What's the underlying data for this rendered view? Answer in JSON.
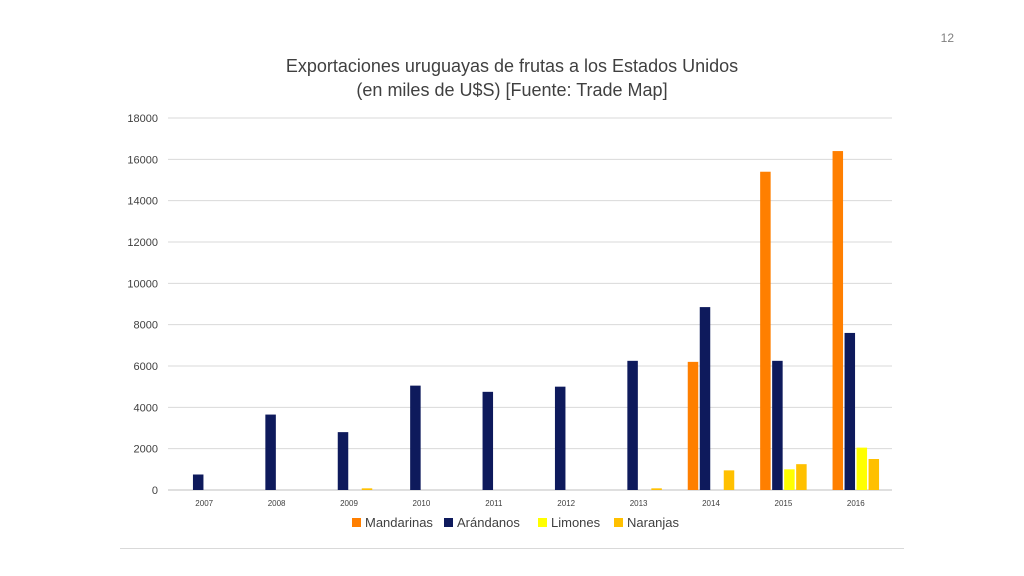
{
  "slide": {
    "page_number": "12"
  },
  "colors": {
    "Mandarinas": "#ff7f00",
    "Arándanos": "#0e1a5c",
    "Limones": "#ffff00",
    "Naranjas": "#ffc000",
    "grid": "#d9d9d9",
    "text": "#404040"
  },
  "chart_data": {
    "type": "bar",
    "title": "Exportaciones uruguayas de frutas a los Estados Unidos",
    "subtitle": "(en miles de U$S) [Fuente: Trade Map]",
    "categories": [
      "2007",
      "2008",
      "2009",
      "2010",
      "2011",
      "2012",
      "2013",
      "2014",
      "2015",
      "2016"
    ],
    "series": [
      {
        "name": "Mandarinas",
        "values": [
          0,
          0,
          0,
          0,
          0,
          0,
          0,
          6200,
          15400,
          16400
        ]
      },
      {
        "name": "Arándanos",
        "values": [
          750,
          3650,
          2800,
          5050,
          4750,
          5000,
          6250,
          8850,
          6250,
          7600
        ]
      },
      {
        "name": "Limones",
        "values": [
          0,
          0,
          0,
          0,
          0,
          0,
          0,
          0,
          1000,
          2050
        ]
      },
      {
        "name": "Naranjas",
        "values": [
          0,
          0,
          80,
          0,
          0,
          0,
          80,
          950,
          1250,
          1500
        ]
      }
    ],
    "ylim": [
      0,
      18000
    ],
    "yticks": [
      0,
      2000,
      4000,
      6000,
      8000,
      10000,
      12000,
      14000,
      16000,
      18000
    ],
    "ytick_labels": [
      "0",
      "2000",
      "4000",
      "6000",
      "8000",
      "10000",
      "12000",
      "14000",
      "16000",
      "18000"
    ],
    "grid": true,
    "legend": "bottom"
  }
}
